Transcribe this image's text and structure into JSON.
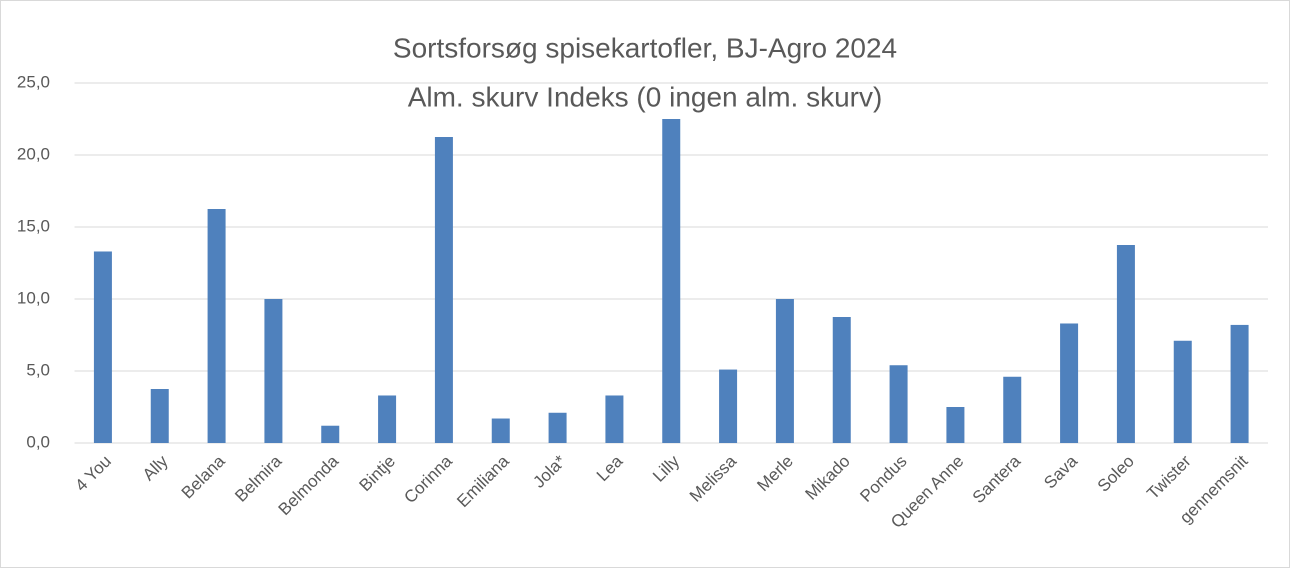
{
  "chart_data": {
    "type": "bar",
    "title": "Sortsforsøg spisekartofler, BJ-Agro 2024",
    "subtitle": "Alm. skurv Indeks (0 ingen alm. skurv)",
    "categories": [
      "4 You",
      "Ally",
      "Belana",
      "Belmira",
      "Belmonda",
      "Bintje",
      "Corinna",
      "Emiliana",
      "Jola*",
      "Lea",
      "Lilly",
      "Melissa",
      "Merle",
      "Mikado",
      "Pondus",
      "Queen Anne",
      "Santera",
      "Sava",
      "Soleo",
      "Twister",
      "gennemsnit"
    ],
    "values": [
      13.3,
      3.75,
      16.25,
      10.0,
      1.2,
      3.3,
      21.25,
      1.7,
      2.1,
      3.3,
      22.5,
      5.1,
      10.0,
      8.75,
      5.4,
      2.5,
      4.6,
      8.3,
      13.75,
      7.1,
      8.2
    ],
    "color": "#4f81bd",
    "ylim": [
      0,
      25
    ],
    "yticks": [
      {
        "value": 0,
        "label": "0,0"
      },
      {
        "value": 5,
        "label": "5,0"
      },
      {
        "value": 10,
        "label": "10,0"
      },
      {
        "value": 15,
        "label": "15,0"
      },
      {
        "value": 20,
        "label": "20,0"
      },
      {
        "value": 25,
        "label": "25,0"
      }
    ],
    "grid": true
  }
}
